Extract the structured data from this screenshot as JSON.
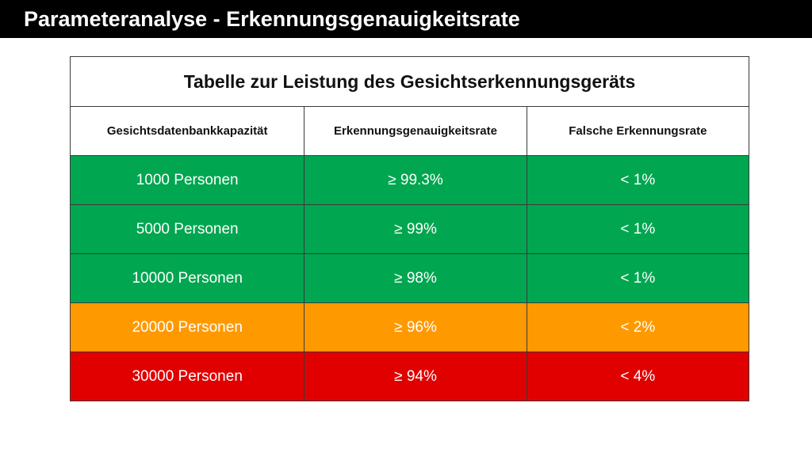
{
  "slide": {
    "title": "Parameteranalyse - Erkennungsgenauigkeitsrate"
  },
  "table": {
    "caption": "Tabelle zur Leistung des Gesichtserkennungsgeräts",
    "headers": [
      "Gesichtsdatenbankkapazität",
      "Erkennungsgenauigkeitsrate",
      "Falsche Erkennungsrate"
    ],
    "rows": [
      {
        "capacity": "1000 Personen",
        "accuracy": "≥ 99.3%",
        "false_rate": "< 1%",
        "color": "#00a650"
      },
      {
        "capacity": "5000 Personen",
        "accuracy": "≥ 99%",
        "false_rate": "< 1%",
        "color": "#00a650"
      },
      {
        "capacity": "10000 Personen",
        "accuracy": "≥ 98%",
        "false_rate": "< 1%",
        "color": "#00a650"
      },
      {
        "capacity": "20000 Personen",
        "accuracy": "≥ 96%",
        "false_rate": "< 2%",
        "color": "#ff9900"
      },
      {
        "capacity": "30000 Personen",
        "accuracy": "≥ 94%",
        "false_rate": "< 4%",
        "color": "#e00000"
      }
    ]
  }
}
